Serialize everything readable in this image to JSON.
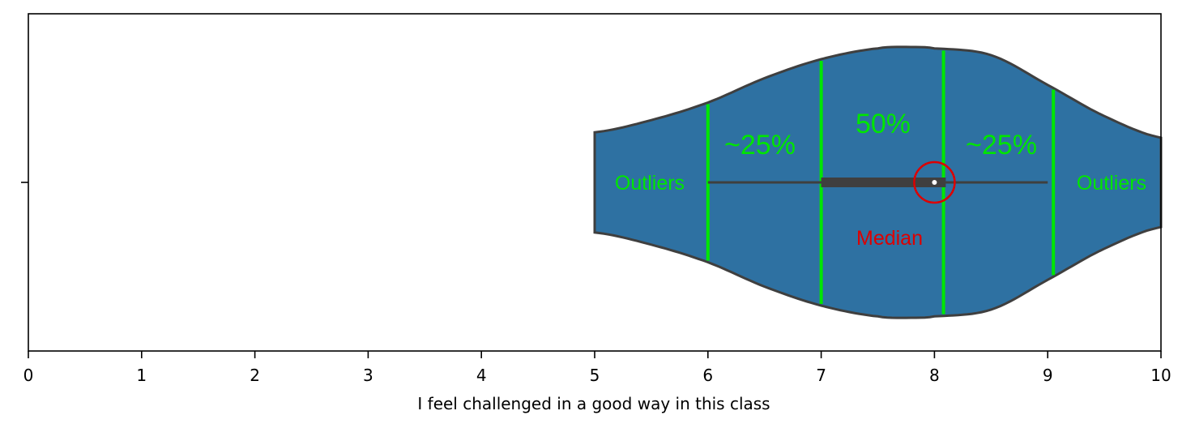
{
  "chart_data": {
    "type": "violin",
    "orientation": "horizontal",
    "xlabel": "I feel challenged in a good way in this class",
    "ylabel": "",
    "title": "",
    "xlim": [
      0,
      10
    ],
    "x_ticks": [
      "0",
      "1",
      "2",
      "3",
      "4",
      "5",
      "6",
      "7",
      "8",
      "9",
      "10"
    ],
    "grid": false,
    "colors": {
      "violin_fill": "#2e71a2",
      "violin_edge": "#3f3f3f",
      "box": "#3f3f3f",
      "quartile_lines": "#00e600",
      "median_marker": "#dd0000"
    },
    "violin": {
      "min": 5,
      "max": 10,
      "q1": 7,
      "median": 8,
      "q3": 8.1,
      "whisker_low": 6,
      "whisker_high": 9,
      "peak": 7.8,
      "density_half_width": [
        [
          5.0,
          0.37
        ],
        [
          5.5,
          0.46
        ],
        [
          6.0,
          0.59
        ],
        [
          6.5,
          0.77
        ],
        [
          7.0,
          0.91
        ],
        [
          7.5,
          0.99
        ],
        [
          7.8,
          1.0
        ],
        [
          8.0,
          0.99
        ],
        [
          8.5,
          0.94
        ],
        [
          9.0,
          0.72
        ],
        [
          9.5,
          0.49
        ],
        [
          10.0,
          0.33
        ]
      ]
    },
    "annotation_lines": [
      6,
      7,
      8.08,
      9.05
    ],
    "annotations": {
      "left_outliers": "Outliers",
      "left_quartile": "~25%",
      "middle": "50%",
      "right_quartile": "~25%",
      "right_outliers": "Outliers",
      "median": "Median"
    }
  }
}
